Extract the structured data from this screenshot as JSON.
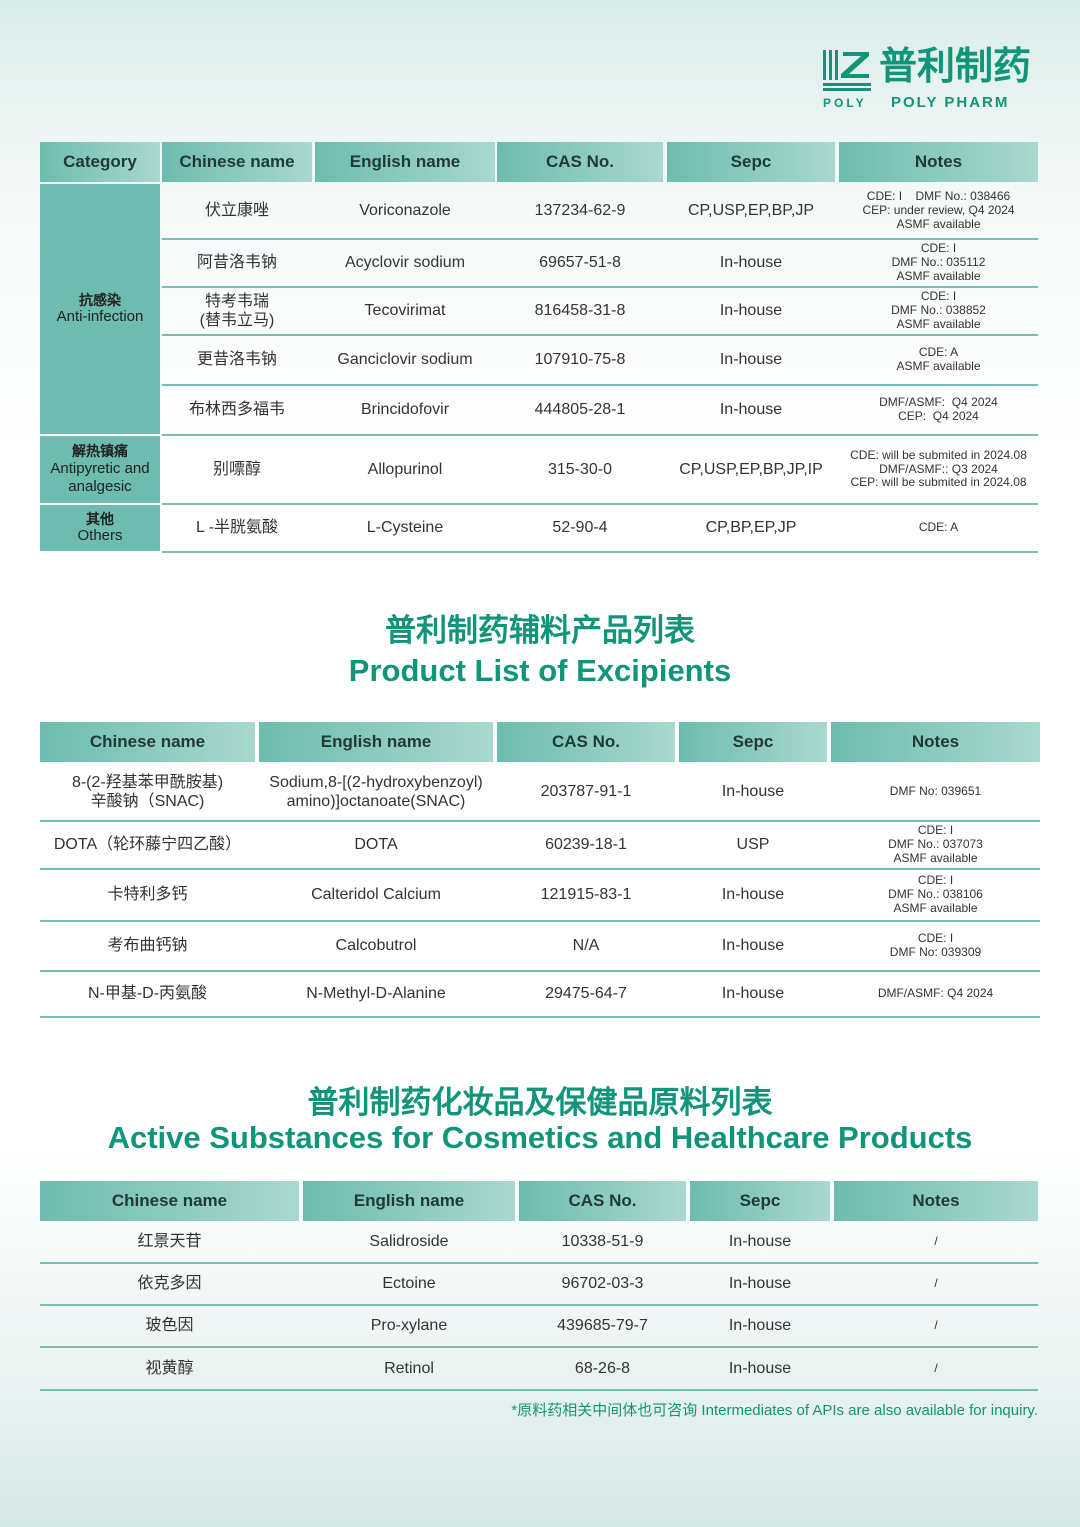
{
  "logo": {
    "cn": "普利制药",
    "en_small": "POLY",
    "en": "POLY PHARM"
  },
  "brand_color": "#10957a",
  "api_table": {
    "headers": [
      "Category",
      "Chinese name",
      "English name",
      "CAS No.",
      "Sepc",
      "Notes"
    ],
    "categories": [
      {
        "cn": "抗感染",
        "en": "Anti-infection"
      },
      {
        "cn": "解热镇痛",
        "en": "Antipyretic and analgesic"
      },
      {
        "cn": "其他",
        "en": "Others"
      }
    ],
    "rows": [
      [
        "伏立康唑",
        "Voriconazole",
        "137234-62-9",
        "CP,USP,EP,BP,JP",
        "CDE: I    DMF No.: 038466\nCEP: under review, Q4 2024\nASMF available"
      ],
      [
        "阿昔洛韦钠",
        "Acyclovir sodium",
        "69657-51-8",
        "In-house",
        "CDE: I\nDMF No.: 035112\nASMF available"
      ],
      [
        "特考韦瑞\n(替韦立马)",
        "Tecovirimat",
        "816458-31-8",
        "In-house",
        "CDE: I\nDMF No.: 038852\nASMF available"
      ],
      [
        "更昔洛韦钠",
        "Ganciclovir sodium",
        "107910-75-8",
        "In-house",
        "CDE: A\nASMF available"
      ],
      [
        "布林西多福韦",
        "Brincidofovir",
        "444805-28-1",
        "In-house",
        "DMF/ASMF:  Q4 2024\nCEP:  Q4 2024"
      ],
      [
        "别嘌醇",
        "Allopurinol",
        "315-30-0",
        "CP,USP,EP,BP,JP,IP",
        "CDE: will be submited in 2024.08\nDMF/ASMF:: Q3 2024\nCEP: will be submited in 2024.08"
      ],
      [
        "L -半胱氨酸",
        "L-Cysteine",
        "52-90-4",
        "CP,BP,EP,JP",
        "CDE: A"
      ]
    ]
  },
  "excipients": {
    "title_cn": "普利制药辅料产品列表",
    "title_en": "Product List of Excipients",
    "headers": [
      "Chinese name",
      "English name",
      "CAS No.",
      "Sepc",
      "Notes"
    ],
    "rows": [
      [
        "8-(2-羟基苯甲酰胺基)\n辛酸钠（SNAC)",
        "Sodium,8-[(2-hydroxybenzoyl)\namino)]octanoate(SNAC)",
        "203787-91-1",
        "In-house",
        "DMF No: 039651"
      ],
      [
        "DOTA（轮环藤宁四乙酸）",
        "DOTA",
        "60239-18-1",
        "USP",
        "CDE: I\nDMF No.: 037073\nASMF available"
      ],
      [
        "卡特利多钙",
        "Calteridol Calcium",
        "121915-83-1",
        "In-house",
        "CDE: I\nDMF No.: 038106\nASMF available"
      ],
      [
        "考布曲钙钠",
        "Calcobutrol",
        "N/A",
        "In-house",
        "CDE: I\nDMF No: 039309"
      ],
      [
        "N-甲基-D-丙氨酸",
        "N-Methyl-D-Alanine",
        "29475-64-7",
        "In-house",
        "DMF/ASMF: Q4 2024"
      ]
    ]
  },
  "cosmetics": {
    "title_cn": "普利制药化妆品及保健品原料列表",
    "title_en": "Active Substances for Cosmetics and Healthcare Products",
    "headers": [
      "Chinese name",
      "English name",
      "CAS No.",
      "Sepc",
      "Notes"
    ],
    "rows": [
      [
        "红景天苷",
        "Salidroside",
        "10338-51-9",
        "In-house",
        "/"
      ],
      [
        "依克多因",
        "Ectoine",
        "96702-03-3",
        "In-house",
        "/"
      ],
      [
        "玻色因",
        "Pro-xylane",
        "439685-79-7",
        "In-house",
        "/"
      ],
      [
        "视黄醇",
        "Retinol",
        "68-26-8",
        "In-house",
        "/"
      ]
    ]
  },
  "footnote": "*原料药相关中间体也可咨询 Intermediates of APIs are also available for inquiry."
}
